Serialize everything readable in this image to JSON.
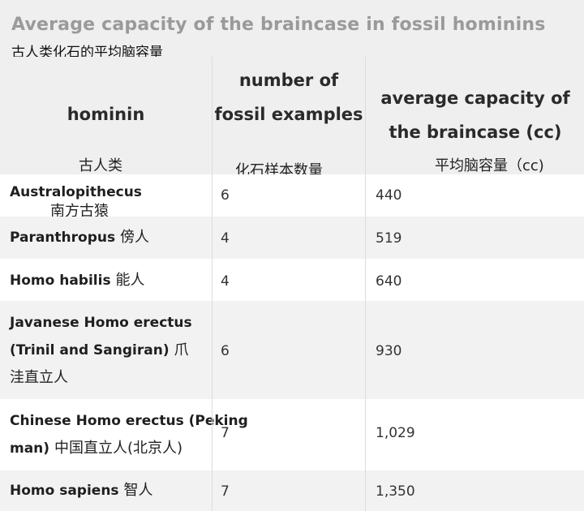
{
  "title": {
    "en": "Average capacity of the braincase in fossil hominins",
    "zh": "古人类化石的平均脑容量"
  },
  "columns": [
    {
      "en": "hominin",
      "zh": "古人类"
    },
    {
      "en": "number of fossil examples",
      "zh": "化石样本数量"
    },
    {
      "en": "average capacity of the braincase (cc)",
      "zh": "平均脑容量（cc)"
    }
  ],
  "rows": [
    {
      "name_en": "Australopithecus",
      "name_zh": "南方古猿",
      "count": "6",
      "capacity": "440"
    },
    {
      "name_en": "Paranthropus",
      "name_zh": "傍人",
      "count": "4",
      "capacity": "519"
    },
    {
      "name_en": "Homo habilis",
      "name_zh": "能人",
      "count": "4",
      "capacity": "640"
    },
    {
      "name_en": "Javanese Homo erectus (Trinil and Sangiran)",
      "name_zh": "爪洼直立人",
      "count": "6",
      "capacity": "930"
    },
    {
      "name_en": "Chinese Homo erectus (Peking man)",
      "name_zh": "中国直立人(北京人)",
      "count": "7",
      "capacity": "1,029"
    },
    {
      "name_en": "Homo sapiens",
      "name_zh": "智人",
      "count": "7",
      "capacity": "1,350"
    }
  ]
}
